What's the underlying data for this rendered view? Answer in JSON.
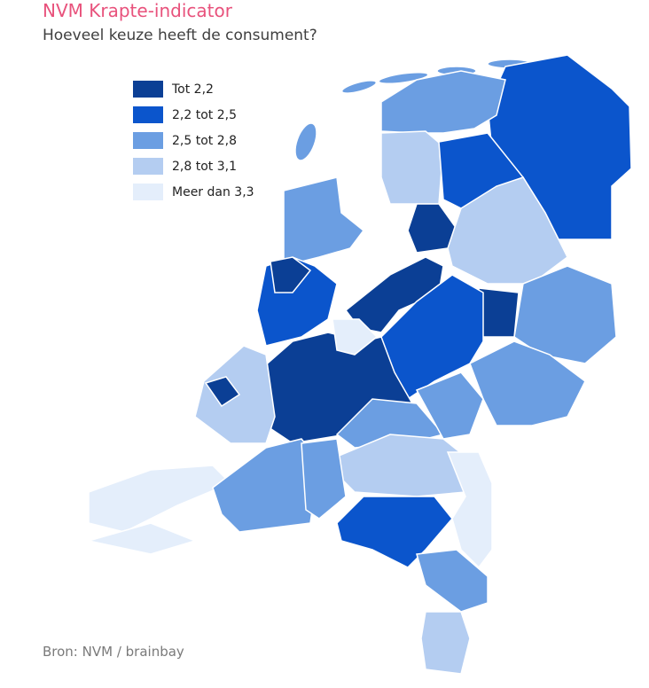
{
  "title": "NVM Krapte-indicator",
  "subtitle": "Hoeveel keuze heeft de consument?",
  "legend": [
    {
      "label": "Tot 2,2",
      "color": "#0b3f95"
    },
    {
      "label": "2,2 tot 2,5",
      "color": "#0b55cc"
    },
    {
      "label": "2,5 tot 2,8",
      "color": "#6b9ee2"
    },
    {
      "label": "2,8 tot 3,1",
      "color": "#b4cdf1"
    },
    {
      "label": "Meer dan 3,3",
      "color": "#e4eefb"
    }
  ],
  "source": "Bron: NVM / brainbay"
}
